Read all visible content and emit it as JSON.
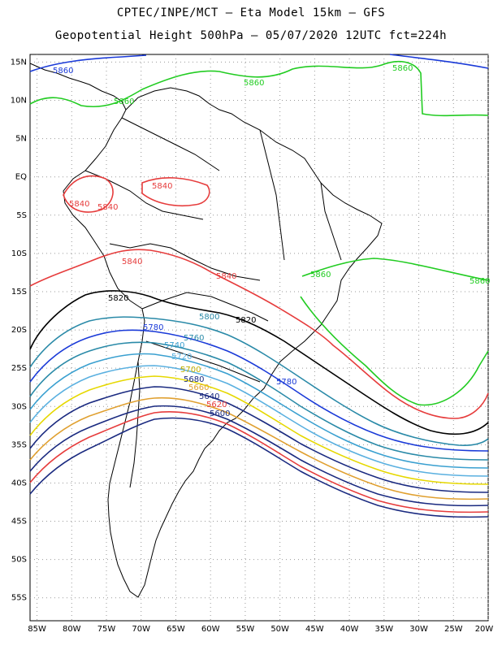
{
  "title": {
    "line1": "CPTEC/INPE/MCT –  Eta Model 15km – GFS",
    "line2": "Geopotential Height 500hPa – 05/07/2020 12UTC fct=224h"
  },
  "map": {
    "projection": "lat-lon",
    "lon_range": [
      -86,
      -20
    ],
    "lat_range": [
      -58,
      16
    ],
    "grid": "dotted, 5 degree",
    "lat_labels": [
      "15N",
      "10N",
      "5N",
      "EQ",
      "5S",
      "10S",
      "15S",
      "20S",
      "25S",
      "30S",
      "35S",
      "40S",
      "45S",
      "50S",
      "55S"
    ],
    "lon_labels": [
      "85W",
      "80W",
      "75W",
      "70W",
      "65W",
      "60W",
      "55W",
      "50W",
      "45W",
      "40W",
      "35W",
      "30W",
      "25W",
      "20W"
    ]
  },
  "contours": [
    {
      "level": "5860",
      "color": "#1a3ad8"
    },
    {
      "level": "5860",
      "color": "#22cc22"
    },
    {
      "level": "5840",
      "color": "#e63c3c"
    },
    {
      "level": "5820",
      "color": "#000000"
    },
    {
      "level": "5800",
      "color": "#2a8aa8"
    },
    {
      "level": "5780",
      "color": "#1a3ad8"
    },
    {
      "level": "5760",
      "color": "#2a8aa8"
    },
    {
      "level": "5740",
      "color": "#3aa0d0"
    },
    {
      "level": "5720",
      "color": "#5ab0e0"
    },
    {
      "level": "5700",
      "color": "#e6d800"
    },
    {
      "level": "5680",
      "color": "#1a2a80"
    },
    {
      "level": "5660",
      "color": "#e0a030"
    },
    {
      "level": "5640",
      "color": "#1a2a80"
    },
    {
      "level": "5620",
      "color": "#e63c3c"
    },
    {
      "level": "5600",
      "color": "#1a2a80"
    }
  ]
}
